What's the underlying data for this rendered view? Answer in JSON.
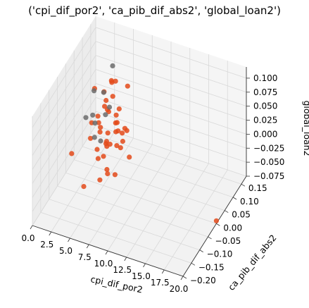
{
  "chart_data": {
    "type": "scatter",
    "projection": "3d",
    "title": "('cpi_dif_por2', 'ca_pib_dif_abs2', 'global_loan2')",
    "xlabel": "cpi_dif_por2",
    "ylabel": "ca_pib_dif_abs2",
    "zlabel": "global_loan2",
    "xlim": [
      0,
      20
    ],
    "ylim": [
      -0.2,
      0.18
    ],
    "zlim": [
      -0.075,
      0.12
    ],
    "x_ticks": [
      "0.0",
      "2.5",
      "5.0",
      "7.5",
      "10.0",
      "12.5",
      "15.0",
      "17.5",
      "20.0"
    ],
    "y_ticks": [
      "−0.20",
      "−0.15",
      "−0.10",
      "−0.05",
      "0.00",
      "0.05",
      "0.10",
      "0.15"
    ],
    "z_ticks": [
      "−0.075",
      "−0.050",
      "−0.025",
      "0.000",
      "0.025",
      "0.050",
      "0.075",
      "0.100"
    ],
    "grid": true,
    "series": [
      {
        "color": "#e34a1a",
        "points": [
          [
            3.5,
            -0.05,
            -0.06
          ],
          [
            4.0,
            0.12,
            -0.04
          ],
          [
            20.0,
            0.0,
            -0.07
          ],
          [
            4.5,
            -0.03,
            0.11
          ],
          [
            5.5,
            0.05,
            0.09
          ],
          [
            6.0,
            0.1,
            0.06
          ],
          [
            5.0,
            -0.02,
            0.03
          ],
          [
            5.2,
            0.01,
            0.0
          ],
          [
            4.8,
            0.03,
            -0.02
          ],
          [
            6.5,
            0.02,
            0.02
          ],
          [
            5.5,
            -0.04,
            0.05
          ],
          [
            4.2,
            0.04,
            0.07
          ],
          [
            6.8,
            -0.06,
            -0.01
          ],
          [
            5.8,
            0.08,
            -0.03
          ],
          [
            4.6,
            -0.01,
            0.04
          ],
          [
            5.3,
            0.06,
            0.01
          ],
          [
            6.2,
            -0.03,
            0.08
          ],
          [
            4.9,
            0.02,
            -0.01
          ],
          [
            5.7,
            0.0,
            0.06
          ],
          [
            6.4,
            0.04,
            -0.02
          ],
          [
            4.4,
            -0.05,
            0.03
          ],
          [
            5.1,
            0.09,
            0.02
          ],
          [
            6.0,
            -0.02,
            -0.04
          ],
          [
            5.4,
            0.03,
            0.1
          ],
          [
            4.7,
            0.07,
            0.05
          ],
          [
            5.9,
            -0.04,
            0.0
          ],
          [
            6.6,
            0.01,
            0.04
          ],
          [
            5.0,
            -0.07,
            0.07
          ],
          [
            4.3,
            0.0,
            -0.03
          ],
          [
            5.6,
            0.05,
            0.03
          ],
          [
            7.0,
            -0.01,
            0.01
          ],
          [
            5.2,
            -0.03,
            -0.05
          ],
          [
            4.8,
            0.06,
            0.08
          ],
          [
            6.1,
            0.02,
            -0.06
          ],
          [
            5.5,
            -0.06,
            0.02
          ],
          [
            6.3,
            0.07,
            0.0
          ],
          [
            4.5,
            0.03,
            0.05
          ],
          [
            5.8,
            -0.02,
            0.09
          ],
          [
            5.0,
            0.04,
            -0.02
          ],
          [
            6.7,
            -0.05,
            0.05
          ],
          [
            7.5,
            0.0,
            0.03
          ],
          [
            8.0,
            0.02,
            -0.02
          ],
          [
            3.0,
            -0.1,
            0.02
          ],
          [
            2.5,
            0.08,
            0.0
          ],
          [
            9.0,
            -0.04,
            0.06
          ]
        ]
      },
      {
        "color": "#6b6b6b",
        "points": [
          [
            4.2,
            -0.02,
            0.1
          ],
          [
            4.6,
            0.02,
            0.08
          ],
          [
            5.0,
            -0.05,
            0.06
          ],
          [
            4.4,
            0.04,
            0.03
          ],
          [
            3.8,
            -0.01,
            0.05
          ],
          [
            4.9,
            0.06,
            0.11
          ],
          [
            5.3,
            -0.03,
            0.02
          ],
          [
            3.6,
            0.01,
            0.0
          ],
          [
            4.0,
            -0.06,
            0.07
          ],
          [
            4.7,
            0.05,
            0.04
          ]
        ]
      }
    ]
  }
}
